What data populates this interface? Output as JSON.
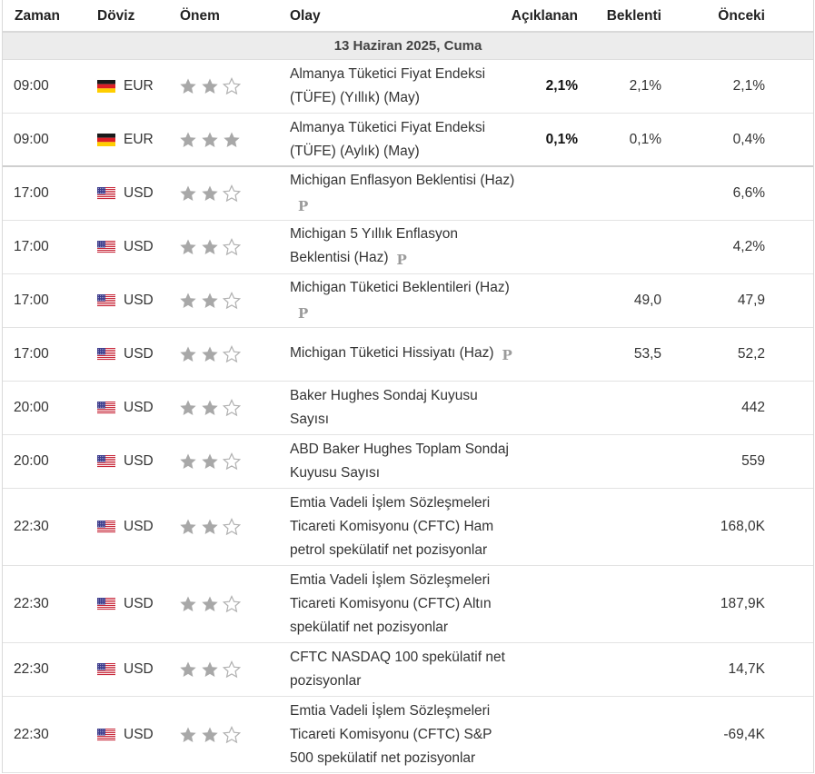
{
  "columns": {
    "time": "Zaman",
    "currency": "Döviz",
    "importance": "Önem",
    "event": "Olay",
    "actual": "Açıklanan",
    "forecast": "Beklenti",
    "previous": "Önceki"
  },
  "date_header": "13 Haziran 2025, Cuma",
  "colors": {
    "star_filled": "#a8a8a8",
    "star_empty_stroke": "#b0b0b0",
    "header_border": "#d9d9d9"
  },
  "p_badge": "P",
  "rows": [
    {
      "time": "09:00",
      "country_icon": "germany-flag-icon",
      "currency": "EUR",
      "importance": 2,
      "event": "Almanya Tüketici Fiyat Endeksi (TÜFE) (Yıllık) (May)",
      "preliminary": false,
      "actual": "2,1%",
      "forecast": "2,1%",
      "previous": "2,1%"
    },
    {
      "time": "09:00",
      "country_icon": "germany-flag-icon",
      "currency": "EUR",
      "importance": 3,
      "event": "Almanya Tüketici Fiyat Endeksi (TÜFE) (Aylık) (May)",
      "preliminary": false,
      "actual": "0,1%",
      "forecast": "0,1%",
      "previous": "0,4%"
    },
    {
      "time": "17:00",
      "country_icon": "usa-flag-icon",
      "currency": "USD",
      "importance": 2,
      "event": "Michigan Enflasyon Beklentisi (Haz)",
      "preliminary": true,
      "actual": "",
      "forecast": "",
      "previous": "6,6%"
    },
    {
      "time": "17:00",
      "country_icon": "usa-flag-icon",
      "currency": "USD",
      "importance": 2,
      "event": "Michigan 5 Yıllık Enflasyon Beklentisi (Haz)",
      "preliminary": true,
      "actual": "",
      "forecast": "",
      "previous": "4,2%"
    },
    {
      "time": "17:00",
      "country_icon": "usa-flag-icon",
      "currency": "USD",
      "importance": 2,
      "event": "Michigan Tüketici Beklentileri (Haz)",
      "preliminary": true,
      "actual": "",
      "forecast": "49,0",
      "previous": "47,9"
    },
    {
      "time": "17:00",
      "country_icon": "usa-flag-icon",
      "currency": "USD",
      "importance": 2,
      "event": "Michigan Tüketici Hissiyatı (Haz)",
      "preliminary": true,
      "actual": "",
      "forecast": "53,5",
      "previous": "52,2"
    },
    {
      "time": "20:00",
      "country_icon": "usa-flag-icon",
      "currency": "USD",
      "importance": 2,
      "event": "Baker Hughes Sondaj Kuyusu Sayısı",
      "preliminary": false,
      "actual": "",
      "forecast": "",
      "previous": "442"
    },
    {
      "time": "20:00",
      "country_icon": "usa-flag-icon",
      "currency": "USD",
      "importance": 2,
      "event": "ABD Baker Hughes Toplam Sondaj Kuyusu Sayısı",
      "preliminary": false,
      "actual": "",
      "forecast": "",
      "previous": "559"
    },
    {
      "time": "22:30",
      "country_icon": "usa-flag-icon",
      "currency": "USD",
      "importance": 2,
      "event": "Emtia Vadeli İşlem Sözleşmeleri Ticareti Komisyonu (CFTC) Ham petrol spekülatif net pozisyonlar",
      "preliminary": false,
      "actual": "",
      "forecast": "",
      "previous": "168,0K"
    },
    {
      "time": "22:30",
      "country_icon": "usa-flag-icon",
      "currency": "USD",
      "importance": 2,
      "event": "Emtia Vadeli İşlem Sözleşmeleri Ticareti Komisyonu (CFTC) Altın spekülatif net pozisyonlar",
      "preliminary": false,
      "actual": "",
      "forecast": "",
      "previous": "187,9K"
    },
    {
      "time": "22:30",
      "country_icon": "usa-flag-icon",
      "currency": "USD",
      "importance": 2,
      "event": "CFTC NASDAQ 100 spekülatif net pozisyonlar",
      "preliminary": false,
      "actual": "",
      "forecast": "",
      "previous": "14,7K"
    },
    {
      "time": "22:30",
      "country_icon": "usa-flag-icon",
      "currency": "USD",
      "importance": 2,
      "event": "Emtia Vadeli İşlem Sözleşmeleri Ticareti Komisyonu (CFTC) S&P 500 spekülatif net pozisyonlar",
      "preliminary": false,
      "actual": "",
      "forecast": "",
      "previous": "-69,4K"
    }
  ]
}
